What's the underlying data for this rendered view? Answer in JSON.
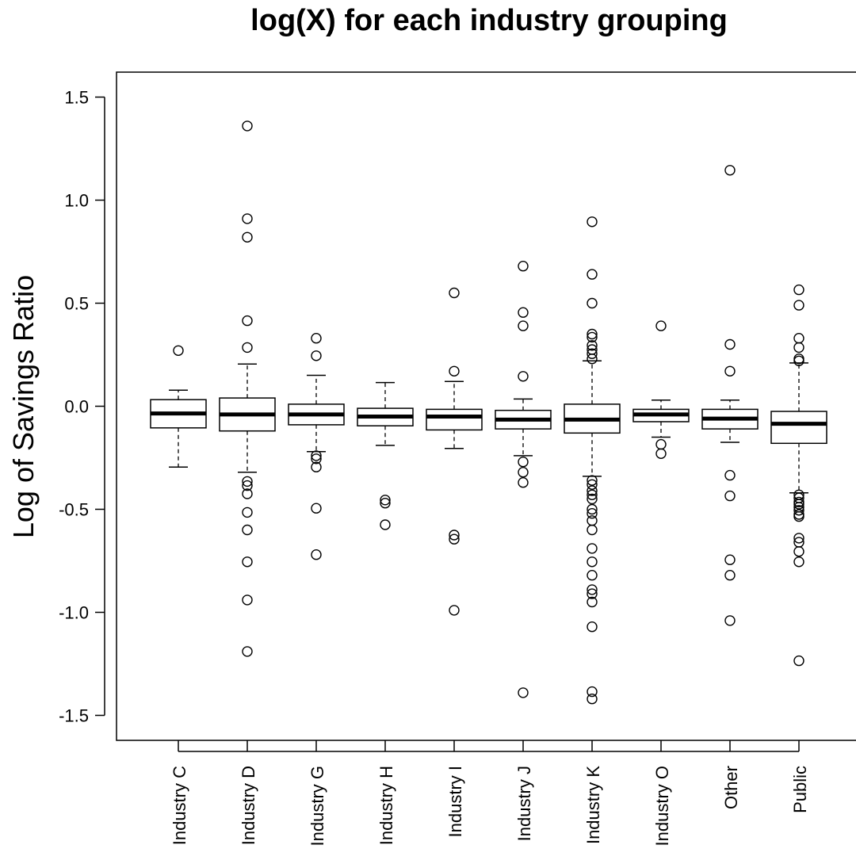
{
  "chart_data": {
    "type": "boxplot",
    "title": "log(X) for each industry grouping",
    "xlabel": "",
    "ylabel": "Log of Savings Ratio",
    "ylim": [
      -1.6,
      1.6
    ],
    "yticks": [
      1.5,
      1.0,
      0.5,
      0.0,
      -0.5,
      -1.0,
      -1.5
    ],
    "ytick_labels": [
      "1.5",
      "1.0",
      "0.5",
      "0.0",
      "-0.5",
      "-1.0",
      "-1.5"
    ],
    "grid": false,
    "categories": [
      "Industry C",
      "Industry D",
      "Industry G",
      "Industry H",
      "Industry I",
      "Industry J",
      "Industry K",
      "Industry O",
      "Other",
      "Public"
    ],
    "boxes": [
      {
        "name": "Industry C",
        "whisker_low": -0.295,
        "q1": -0.105,
        "median": -0.035,
        "q3": 0.032,
        "whisker_high": 0.078,
        "outliers": [
          0.27
        ]
      },
      {
        "name": "Industry D",
        "whisker_low": -0.32,
        "q1": -0.12,
        "median": -0.04,
        "q3": 0.04,
        "whisker_high": 0.205,
        "outliers": [
          1.36,
          0.91,
          0.82,
          0.415,
          0.285,
          -0.365,
          -0.385,
          -0.425,
          -0.515,
          -0.6,
          -0.755,
          -0.94,
          -1.19
        ]
      },
      {
        "name": "Industry G",
        "whisker_low": -0.22,
        "q1": -0.09,
        "median": -0.04,
        "q3": 0.01,
        "whisker_high": 0.15,
        "outliers": [
          0.33,
          0.245,
          -0.24,
          -0.255,
          -0.295,
          -0.495,
          -0.72
        ]
      },
      {
        "name": "Industry H",
        "whisker_low": -0.19,
        "q1": -0.095,
        "median": -0.05,
        "q3": -0.01,
        "whisker_high": 0.115,
        "outliers": [
          -0.455,
          -0.47,
          -0.575
        ]
      },
      {
        "name": "Industry I",
        "whisker_low": -0.205,
        "q1": -0.115,
        "median": -0.05,
        "q3": -0.015,
        "whisker_high": 0.12,
        "outliers": [
          0.55,
          0.17,
          -0.625,
          -0.645,
          -0.99
        ]
      },
      {
        "name": "Industry J",
        "whisker_low": -0.24,
        "q1": -0.11,
        "median": -0.065,
        "q3": -0.02,
        "whisker_high": 0.035,
        "outliers": [
          0.68,
          0.455,
          0.39,
          0.145,
          -0.27,
          -0.32,
          -0.37,
          -1.39
        ]
      },
      {
        "name": "Industry K",
        "whisker_low": -0.34,
        "q1": -0.13,
        "median": -0.065,
        "q3": 0.01,
        "whisker_high": 0.22,
        "outliers": [
          0.895,
          0.64,
          0.5,
          0.35,
          0.335,
          0.295,
          0.275,
          0.255,
          0.23,
          -0.36,
          -0.38,
          -0.41,
          -0.43,
          -0.45,
          -0.5,
          -0.52,
          -0.555,
          -0.6,
          -0.69,
          -0.755,
          -0.82,
          -0.89,
          -0.91,
          -0.95,
          -1.07,
          -1.385,
          -1.42
        ]
      },
      {
        "name": "Industry O",
        "whisker_low": -0.15,
        "q1": -0.075,
        "median": -0.04,
        "q3": -0.015,
        "whisker_high": 0.03,
        "outliers": [
          0.39,
          -0.185,
          -0.23
        ]
      },
      {
        "name": "Other",
        "whisker_low": -0.175,
        "q1": -0.11,
        "median": -0.06,
        "q3": -0.015,
        "whisker_high": 0.03,
        "outliers": [
          1.145,
          0.3,
          0.17,
          -0.335,
          -0.435,
          -0.745,
          -0.82,
          -1.04
        ]
      },
      {
        "name": "Public",
        "whisker_low": -0.42,
        "q1": -0.18,
        "median": -0.085,
        "q3": -0.025,
        "whisker_high": 0.21,
        "outliers": [
          0.565,
          0.49,
          0.33,
          0.285,
          0.23,
          0.22,
          -0.43,
          -0.445,
          -0.465,
          -0.475,
          -0.49,
          -0.505,
          -0.525,
          -0.535,
          -0.64,
          -0.66,
          -0.705,
          -0.755,
          -1.235
        ]
      }
    ]
  }
}
